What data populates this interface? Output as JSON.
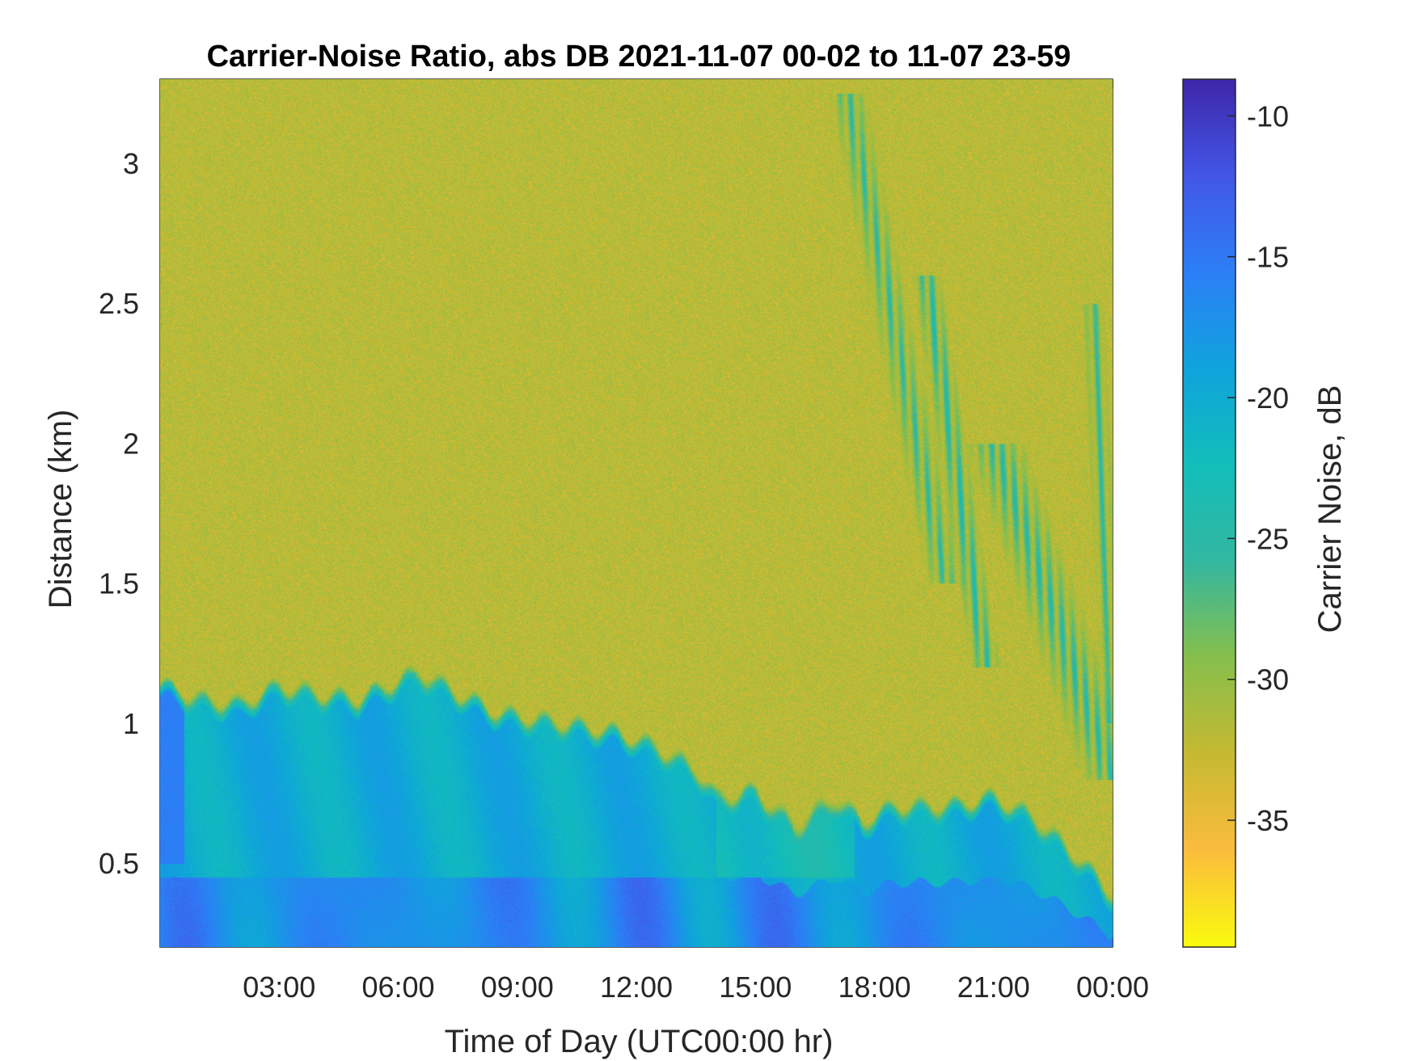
{
  "chart_data": {
    "type": "heatmap",
    "title": "Carrier-Noise Ratio, abs DB 2021-11-07 00-02 to 11-07 23-59",
    "xlabel": "Time of Day (UTC00:00 hr)",
    "ylabel": "Distance (km)",
    "colorbar_label": "Carrier Noise, dB",
    "x_unit": "hours",
    "xlim": [
      0.0,
      24.0
    ],
    "ylim": [
      0.2,
      3.3
    ],
    "x_ticks": [
      {
        "value": 3,
        "label": "03:00"
      },
      {
        "value": 6,
        "label": "06:00"
      },
      {
        "value": 9,
        "label": "09:00"
      },
      {
        "value": 12,
        "label": "12:00"
      },
      {
        "value": 15,
        "label": "15:00"
      },
      {
        "value": 18,
        "label": "18:00"
      },
      {
        "value": 21,
        "label": "21:00"
      },
      {
        "value": 24,
        "label": "00:00"
      }
    ],
    "y_ticks": [
      {
        "value": 0.5,
        "label": "0.5"
      },
      {
        "value": 1.0,
        "label": "1"
      },
      {
        "value": 1.5,
        "label": "1.5"
      },
      {
        "value": 2.0,
        "label": "2"
      },
      {
        "value": 2.5,
        "label": "2.5"
      },
      {
        "value": 3.0,
        "label": "3"
      }
    ],
    "clim": [
      -39.5,
      -8.7
    ],
    "colorbar_ticks": [
      {
        "value": -10,
        "label": "-10"
      },
      {
        "value": -15,
        "label": "-15"
      },
      {
        "value": -20,
        "label": "-20"
      },
      {
        "value": -25,
        "label": "-25"
      },
      {
        "value": -30,
        "label": "-30"
      },
      {
        "value": -35,
        "label": "-35"
      }
    ],
    "colormap": "parula-reversed",
    "colormap_stops": [
      "#f9fb0e",
      "#fbbc3d",
      "#c5b931",
      "#86bf4c",
      "#33b7a0",
      "#12beb9",
      "#0fa3dc",
      "#2c7ff6",
      "#4256e6",
      "#3e26a8"
    ],
    "background_level_db": -32,
    "boundary_layer_top_km": [
      {
        "x": 0.0,
        "y": 1.15
      },
      {
        "x": 1.0,
        "y": 1.1
      },
      {
        "x": 2.0,
        "y": 1.08
      },
      {
        "x": 3.0,
        "y": 1.15
      },
      {
        "x": 4.0,
        "y": 1.12
      },
      {
        "x": 5.0,
        "y": 1.1
      },
      {
        "x": 6.5,
        "y": 1.2
      },
      {
        "x": 7.5,
        "y": 1.12
      },
      {
        "x": 8.5,
        "y": 1.05
      },
      {
        "x": 10.0,
        "y": 1.02
      },
      {
        "x": 11.5,
        "y": 0.98
      },
      {
        "x": 12.5,
        "y": 0.93
      },
      {
        "x": 13.5,
        "y": 0.85
      },
      {
        "x": 14.0,
        "y": 0.75
      },
      {
        "x": 15.0,
        "y": 0.77
      },
      {
        "x": 16.0,
        "y": 0.65
      },
      {
        "x": 17.0,
        "y": 0.75
      },
      {
        "x": 17.7,
        "y": 0.66
      },
      {
        "x": 18.5,
        "y": 0.72
      },
      {
        "x": 20.0,
        "y": 0.72
      },
      {
        "x": 21.0,
        "y": 0.75
      },
      {
        "x": 22.0,
        "y": 0.68
      },
      {
        "x": 23.0,
        "y": 0.55
      },
      {
        "x": 24.0,
        "y": 0.4
      }
    ],
    "boundary_layer_level_db": -20,
    "plumes": [
      {
        "x0": 17.3,
        "y0": 3.25,
        "x1": 19.8,
        "y1": 1.5,
        "width_hours": 0.5,
        "level_db": -23
      },
      {
        "x0": 19.3,
        "y0": 2.6,
        "x1": 20.8,
        "y1": 1.2,
        "width_hours": 0.4,
        "level_db": -21
      },
      {
        "x0": 21.0,
        "y0": 2.0,
        "x1": 24.0,
        "y1": 0.8,
        "width_hours": 0.8,
        "level_db": -22
      },
      {
        "x0": 23.5,
        "y0": 2.5,
        "x1": 24.0,
        "y1": 1.0,
        "width_hours": 0.3,
        "level_db": -23
      }
    ]
  }
}
